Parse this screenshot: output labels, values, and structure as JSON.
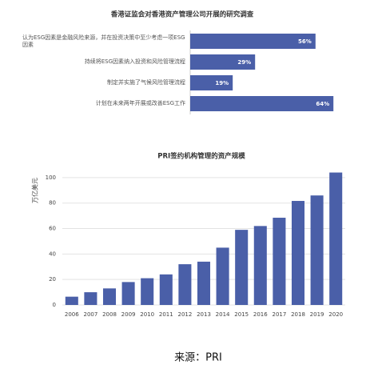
{
  "chart_data": [
    {
      "type": "hbar",
      "title": "香港证监会对香港资产管理公司开展的研究调查",
      "categories": [
        "认为ESG因素是金融风险来源，并在投资决策中至少考虑一项ESG因素",
        "持续将ESG因素纳入投资和风险管理流程",
        "制定并实施了气候风险管理流程",
        "计划在未来两年开展或改善ESG工作"
      ],
      "values": [
        56,
        29,
        19,
        64
      ],
      "value_labels": [
        "56%",
        "29%",
        "19%",
        "64%"
      ],
      "color": "#4a5fa8"
    },
    {
      "type": "bar",
      "title": "PRI签约机构管理的资产规模",
      "ylabel": "万亿美元",
      "categories": [
        "2006",
        "2007",
        "2008",
        "2009",
        "2010",
        "2011",
        "2012",
        "2013",
        "2014",
        "2015",
        "2016",
        "2017",
        "2018",
        "2019",
        "2020"
      ],
      "values": [
        6.5,
        10,
        13,
        18,
        21,
        24,
        32,
        34,
        45,
        59,
        62,
        68.5,
        81.7,
        86,
        104
      ],
      "color": "#4a5fa8",
      "ylim": [
        0,
        110
      ],
      "yticks": [
        0,
        20,
        40,
        60,
        80,
        100
      ],
      "grid": true
    }
  ],
  "source": "来源：PRI"
}
